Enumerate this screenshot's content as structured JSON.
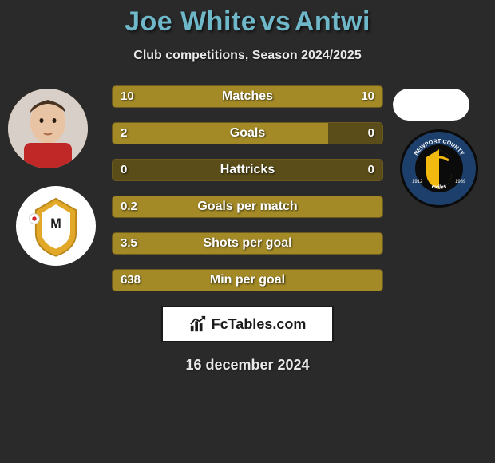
{
  "title": {
    "player1": "Joe White",
    "vs": "vs",
    "player2": "Antwi",
    "color": "#6fb8c9"
  },
  "subtitle": "Club competitions, Season 2024/2025",
  "players": {
    "left": {
      "has_photo": true,
      "club_badge_bg": "#ffffff",
      "club_badge_inner": "#e2a828",
      "club_badge_accent": "#d0242a"
    },
    "right": {
      "has_photo": false,
      "photo_bg": "#ffffff",
      "club_badge_bg": "#0b0b0b",
      "club_badge_ring": "#1d3f6b",
      "club_badge_inner": "#f2b90f",
      "club_year_left": "1912",
      "club_year_right": "1989",
      "club_text_top": "NEWPORT COUNTY",
      "club_text_bottom": "exiles"
    }
  },
  "bars": {
    "track_color": "#5a4d1a",
    "fill_color": "#a38a27",
    "label_color": "#ffffff",
    "value_color": "#ffffff",
    "rows": [
      {
        "label": "Matches",
        "left_val": "10",
        "right_val": "10",
        "left_pct": 50,
        "right_pct": 50
      },
      {
        "label": "Goals",
        "left_val": "2",
        "right_val": "0",
        "left_pct": 80,
        "right_pct": 0
      },
      {
        "label": "Hattricks",
        "left_val": "0",
        "right_val": "0",
        "left_pct": 0,
        "right_pct": 0
      },
      {
        "label": "Goals per match",
        "left_val": "0.2",
        "right_val": "",
        "left_pct": 100,
        "right_pct": 0
      },
      {
        "label": "Shots per goal",
        "left_val": "3.5",
        "right_val": "",
        "left_pct": 100,
        "right_pct": 0
      },
      {
        "label": "Min per goal",
        "left_val": "638",
        "right_val": "",
        "left_pct": 100,
        "right_pct": 0
      }
    ]
  },
  "footer": {
    "brand": "FcTables.com",
    "date": "16 december 2024"
  }
}
